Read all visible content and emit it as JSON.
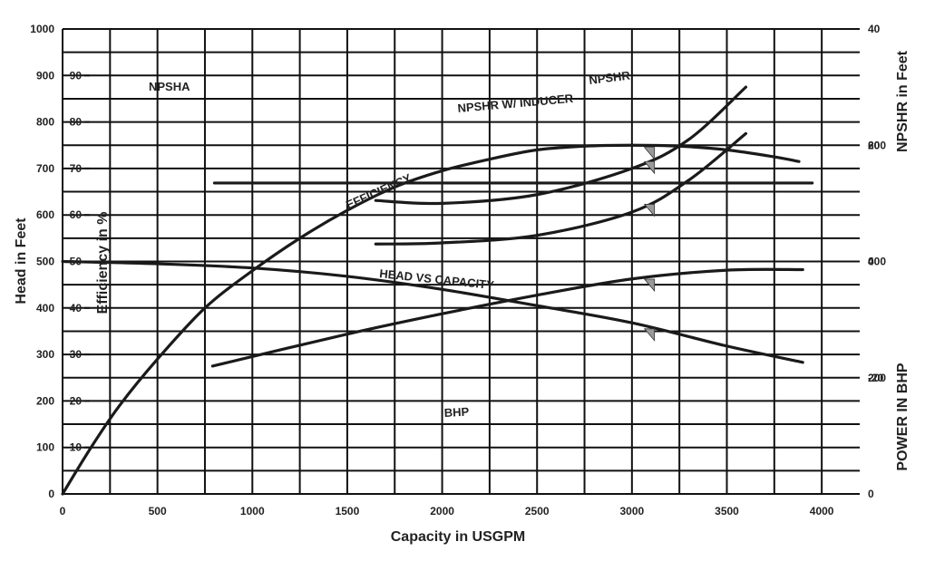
{
  "chart_data": {
    "type": "line",
    "title": "",
    "xlabel": "Capacity in USGPM",
    "ylabel_left_head": "Head in Feet",
    "ylabel_left_efficiency": "Efficiency in %",
    "ylabel_right_npshr": "NPSHR in Feet",
    "ylabel_right_power": "POWER IN BHP",
    "xlim": [
      0,
      4200
    ],
    "ylim_head": [
      0,
      1000
    ],
    "ylim_efficiency": [
      0,
      100
    ],
    "ylim_npsh": [
      -40,
      40
    ],
    "ylim_power": [
      0,
      800
    ],
    "grid": true,
    "x_ticks": [
      "0",
      "500",
      "1000",
      "1500",
      "2000",
      "2500",
      "3000",
      "3500",
      "4000"
    ],
    "head_ticks": [
      "0",
      "100",
      "200",
      "300",
      "400",
      "500",
      "600",
      "700",
      "800",
      "900",
      "1000"
    ],
    "efficiency_ticks": [
      "10",
      "20",
      "30",
      "40",
      "50",
      "60",
      "70",
      "80",
      "90"
    ],
    "npsh_ticks": [
      "40",
      "20",
      "0",
      "-20"
    ],
    "power_ticks": [
      "0",
      "200",
      "400",
      "600"
    ],
    "series": [
      {
        "name": "HEAD VS CAPACITY",
        "axis": "head",
        "x": [
          0,
          500,
          1000,
          1500,
          2000,
          2500,
          3000,
          3500,
          3900
        ],
        "y": [
          500,
          495,
          486,
          468,
          440,
          405,
          368,
          318,
          283
        ]
      },
      {
        "name": "EFFICIENCY",
        "axis": "efficiency",
        "x": [
          0,
          150,
          300,
          500,
          750,
          1000,
          1250,
          1500,
          1750,
          2000,
          2250,
          2500,
          2750,
          3000,
          3250,
          3500,
          3750,
          3880
        ],
        "y": [
          0,
          10,
          19,
          29,
          40,
          48,
          55,
          61,
          66,
          69.5,
          72,
          74,
          74.8,
          75,
          74.8,
          74,
          72.5,
          71.5
        ]
      },
      {
        "name": "NPSHR",
        "axis": "npsh",
        "x": [
          1650,
          2000,
          2500,
          3000,
          3300,
          3600
        ],
        "y": [
          10.5,
          10,
          11.5,
          16,
          21,
          30
        ]
      },
      {
        "name": "NPSHR W/ INDUCER",
        "axis": "npsh",
        "x": [
          1650,
          2000,
          2500,
          3000,
          3300,
          3600
        ],
        "y": [
          3,
          3.2,
          4.5,
          8.5,
          14,
          22
        ]
      },
      {
        "name": "NPSHA",
        "axis": "npsh",
        "x": [
          800,
          3950
        ],
        "y": [
          13.5,
          13.5
        ]
      },
      {
        "name": "BHP",
        "axis": "power",
        "x": [
          790,
          1500,
          2000,
          2500,
          3000,
          3500,
          3900
        ],
        "y": [
          220,
          275,
          310,
          342,
          370,
          385,
          386
        ]
      }
    ],
    "annotations": [
      "NPSHA",
      "NPSHR",
      "NPSHR W/ INDUCER",
      "EFFICIENCY",
      "HEAD VS CAPACITY",
      "BHP"
    ]
  }
}
